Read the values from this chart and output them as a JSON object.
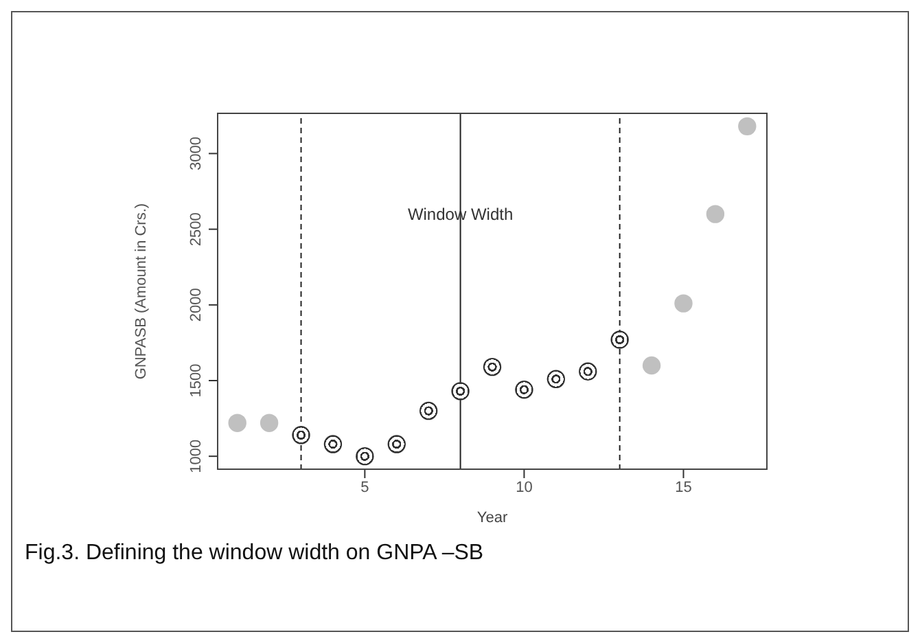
{
  "chart_data": {
    "type": "scatter",
    "xlabel": "Year",
    "ylabel": "GNPASB (Amount in Crs.)",
    "xlim": [
      0.36,
      17.64
    ],
    "xticks": [
      5,
      10,
      15
    ],
    "ylim": [
      910,
      3270
    ],
    "yticks": [
      1000,
      1500,
      2000,
      2500,
      3000
    ],
    "marker": "circle",
    "series": [
      {
        "color": "#c0c0c0",
        "x": [
          1,
          2,
          14,
          15,
          16,
          17
        ],
        "values": [
          1220,
          1220,
          1600,
          2010,
          2600,
          3180
        ]
      },
      {
        "color": "#333333",
        "x": [
          3,
          4,
          5,
          6,
          7,
          8,
          9,
          10,
          11,
          12,
          13
        ],
        "values": [
          1140,
          1080,
          1000,
          1080,
          1300,
          1430,
          1590,
          1440,
          1510,
          1560,
          1770
        ]
      }
    ],
    "ref_lines": [
      {
        "axis": "x",
        "value": 3,
        "line_style": "dashed",
        "color": "#222222"
      },
      {
        "axis": "x",
        "value": 8,
        "line_style": "solid",
        "color": "#222222"
      },
      {
        "axis": "x",
        "value": 13,
        "line_style": "dashed",
        "color": "#222222"
      }
    ],
    "annotations": [
      {
        "text": "Window Width",
        "x": 8,
        "y": 2600
      },
      "Fig.3. Defining the window width on GNPA –SB"
    ]
  }
}
